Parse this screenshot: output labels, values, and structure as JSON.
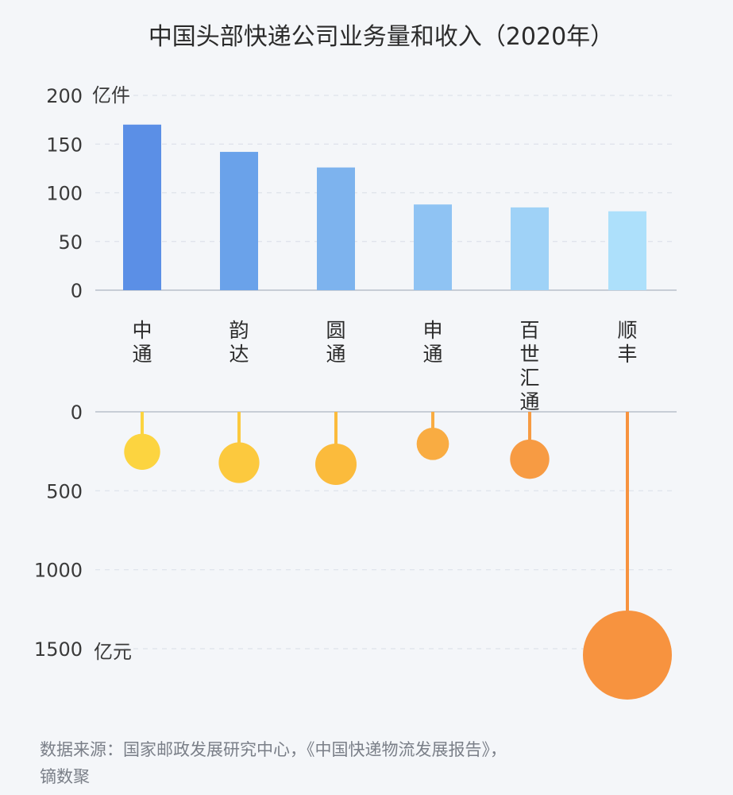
{
  "chart_data": [
    {
      "type": "bar",
      "title": "中国头部快递公司业务量和收入（2020年）",
      "ylabel": "亿件",
      "ylim": [
        0,
        200
      ],
      "yticks": [
        0,
        50,
        100,
        150,
        200
      ],
      "categories": [
        "中通",
        "韵达",
        "圆通",
        "申通",
        "百世汇通",
        "顺丰"
      ],
      "values": [
        170,
        142,
        126,
        88,
        85,
        81
      ],
      "colors": [
        "#5b8fe6",
        "#6aa2ea",
        "#7db3ee",
        "#8fc3f3",
        "#9fd2f7",
        "#ade0fb"
      ],
      "grid": true
    },
    {
      "type": "scatter",
      "ylabel": "亿元",
      "ylim": [
        0,
        1500
      ],
      "yticks": [
        0,
        500,
        1000,
        1500
      ],
      "axis_direction": "inverted",
      "categories": [
        "中通",
        "韵达",
        "圆通",
        "申通",
        "百世汇通",
        "顺丰"
      ],
      "values": [
        253,
        322,
        332,
        203,
        300,
        1540
      ],
      "colors": [
        "#fcd440",
        "#fcc93e",
        "#fbbb3c",
        "#f9ac42",
        "#f79b43",
        "#f7933f"
      ],
      "grid": true
    }
  ],
  "source": "数据来源：国家邮政发展研究中心，《中国快递物流发展报告》，镝数聚"
}
